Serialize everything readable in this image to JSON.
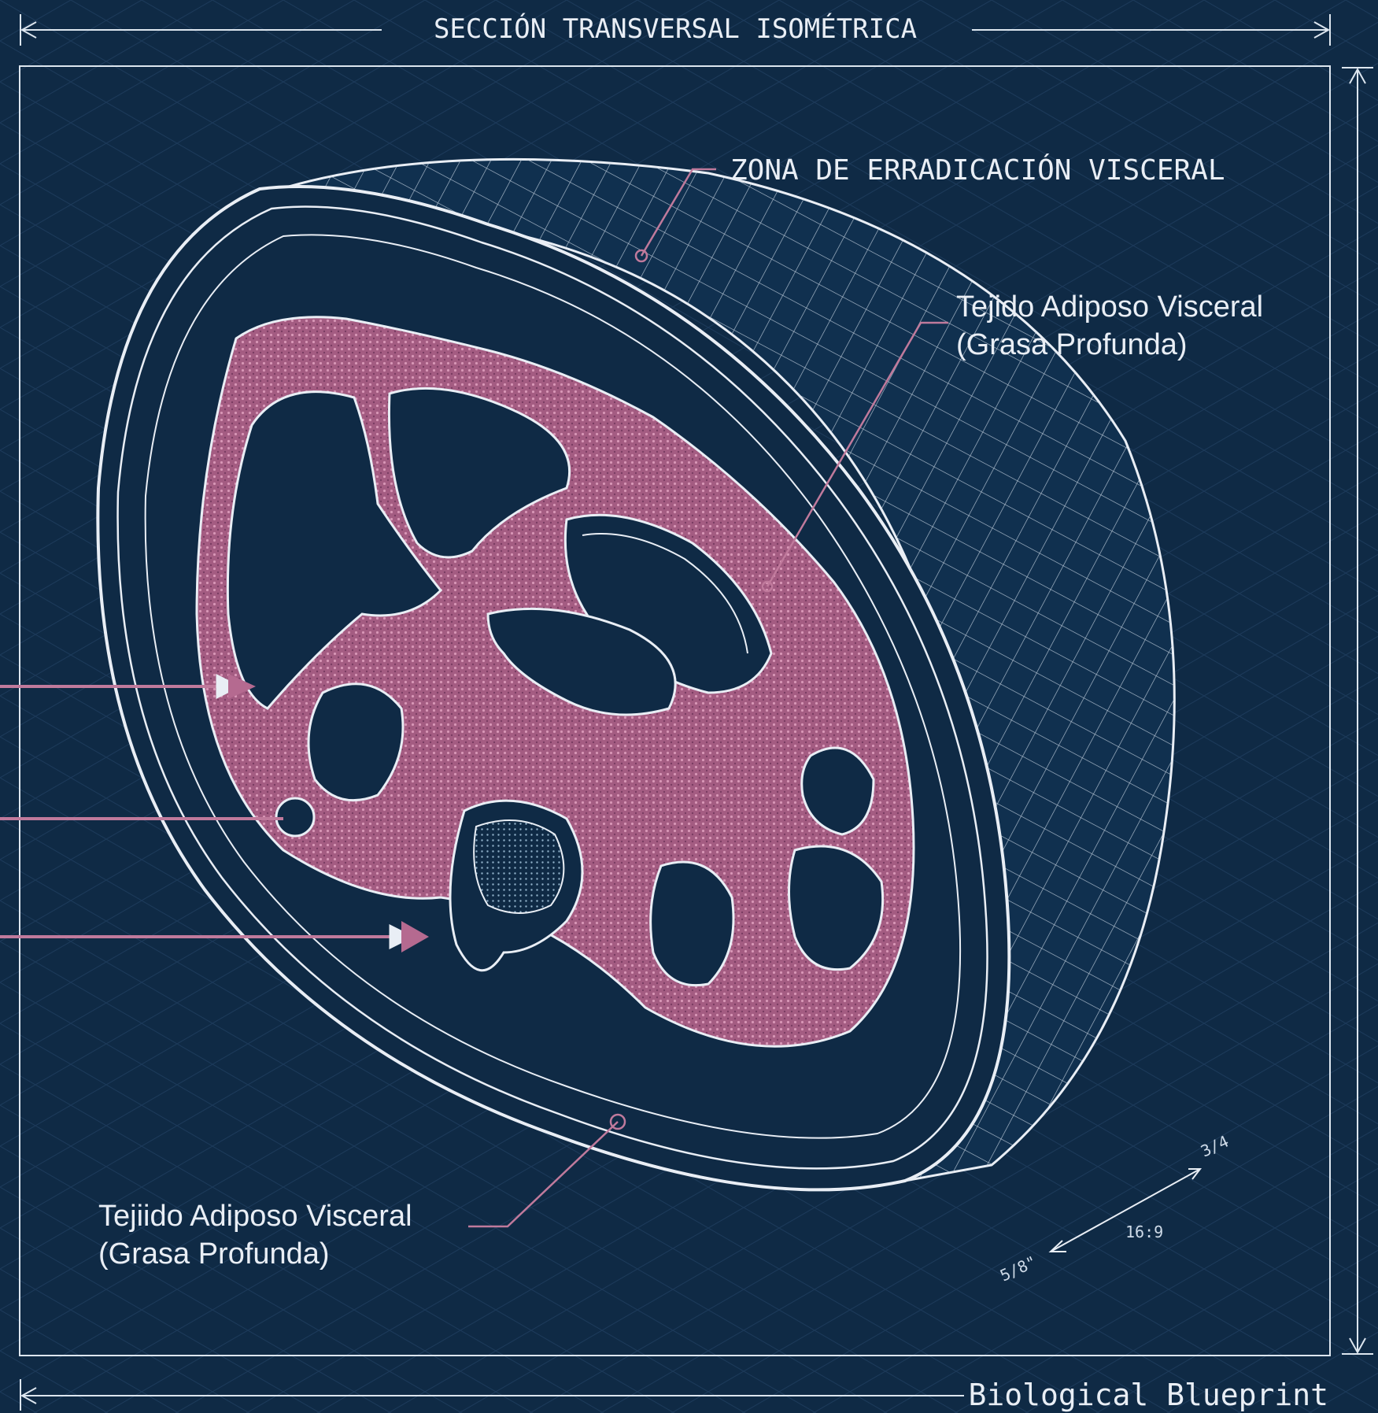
{
  "header": {
    "title": "SECCIÓN TRANSVERSAL ISOMÉTRICA"
  },
  "labels": {
    "zone": "ZONA DE ERRADICACIÓN VISCERAL",
    "visceral_right_line1": "Tejido Adiposo Visceral",
    "visceral_right_line2": "(Grasa Profunda)",
    "visceral_left_line1": "Tejiido Adiposo Visceral",
    "visceral_left_line2": "(Grasa Profunda)"
  },
  "scale": {
    "ratio": "16:9",
    "left_mark": "5/8\"",
    "right_mark": "3/4"
  },
  "footer": {
    "title": "Biological Blueprint"
  },
  "colors": {
    "background": "#0f2a45",
    "line": "#e9eef5",
    "fat": "#b56a90",
    "leader": "#c07a9c"
  }
}
